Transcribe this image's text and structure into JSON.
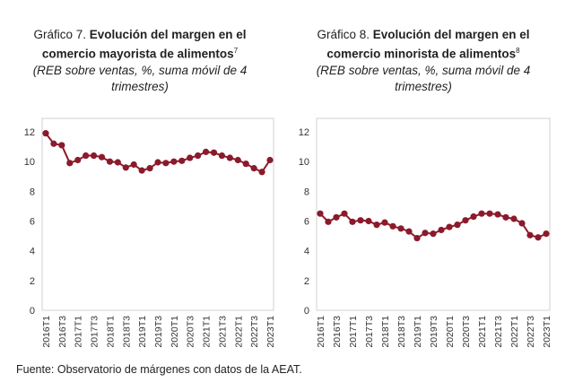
{
  "chart_data": [
    {
      "type": "line",
      "title_prefix": "Gráfico 7.",
      "title": "Evolución del margen en el comercio mayorista de alimentos",
      "footnote": "7",
      "subtitle": "(REB sobre ventas, %, suma móvil de 4 trimestres)",
      "ylim": [
        0,
        12
      ],
      "yticks": [
        "0",
        "2",
        "4",
        "6",
        "8",
        "10",
        "12"
      ],
      "x": [
        "2016T1",
        "2016T2",
        "2016T3",
        "2016T4",
        "2017T1",
        "2017T2",
        "2017T3",
        "2017T4",
        "2018T1",
        "2018T2",
        "2018T3",
        "2018T4",
        "2019T1",
        "2019T2",
        "2019T3",
        "2019T4",
        "2020T1",
        "2020T2",
        "2020T3",
        "2020T4",
        "2021T1",
        "2021T2",
        "2021T3",
        "2021T4",
        "2022T1",
        "2022T2",
        "2022T3",
        "2022T4",
        "2023T1"
      ],
      "xticklabels": [
        "2016T1",
        "2016T3",
        "2017T1",
        "2017T3",
        "2018T1",
        "2018T3",
        "2019T1",
        "2019T3",
        "2020T1",
        "2020T3",
        "2021T1",
        "2021T3",
        "2022T1",
        "2022T3",
        "2023T1"
      ],
      "values": [
        11.9,
        11.2,
        11.1,
        9.9,
        10.1,
        10.4,
        10.4,
        10.3,
        10.0,
        9.95,
        9.6,
        9.8,
        9.4,
        9.55,
        9.95,
        9.9,
        10.0,
        10.05,
        10.25,
        10.4,
        10.65,
        10.6,
        10.4,
        10.25,
        10.1,
        9.85,
        9.55,
        9.3,
        10.1
      ],
      "color": "#8b1a2b"
    },
    {
      "type": "line",
      "title_prefix": "Gráfico 8.",
      "title": "Evolución del margen en el comercio minorista de alimentos",
      "footnote": "8",
      "subtitle": "(REB sobre ventas, %, suma móvil de 4 trimestres)",
      "ylim": [
        0,
        12
      ],
      "yticks": [
        "0",
        "2",
        "4",
        "6",
        "8",
        "10",
        "12"
      ],
      "xticklabels": [
        "2016T1",
        "2016T3",
        "2017T1",
        "2017T3",
        "2018T1",
        "2018T3",
        "2019T1",
        "2019T3",
        "2020T1",
        "2020T3",
        "2021T1",
        "2021T3",
        "2022T1",
        "2022T3",
        "2023T1"
      ],
      "values": [
        6.5,
        5.95,
        6.25,
        6.5,
        5.95,
        6.05,
        6.0,
        5.75,
        5.9,
        5.65,
        5.5,
        5.3,
        4.85,
        5.2,
        5.15,
        5.4,
        5.6,
        5.75,
        6.05,
        6.3,
        6.5,
        6.5,
        6.45,
        6.25,
        6.15,
        5.85,
        5.05,
        4.9,
        5.15
      ],
      "color": "#8b1a2b"
    }
  ],
  "source": "Fuente: Observatorio de márgenes con datos de la AEAT."
}
